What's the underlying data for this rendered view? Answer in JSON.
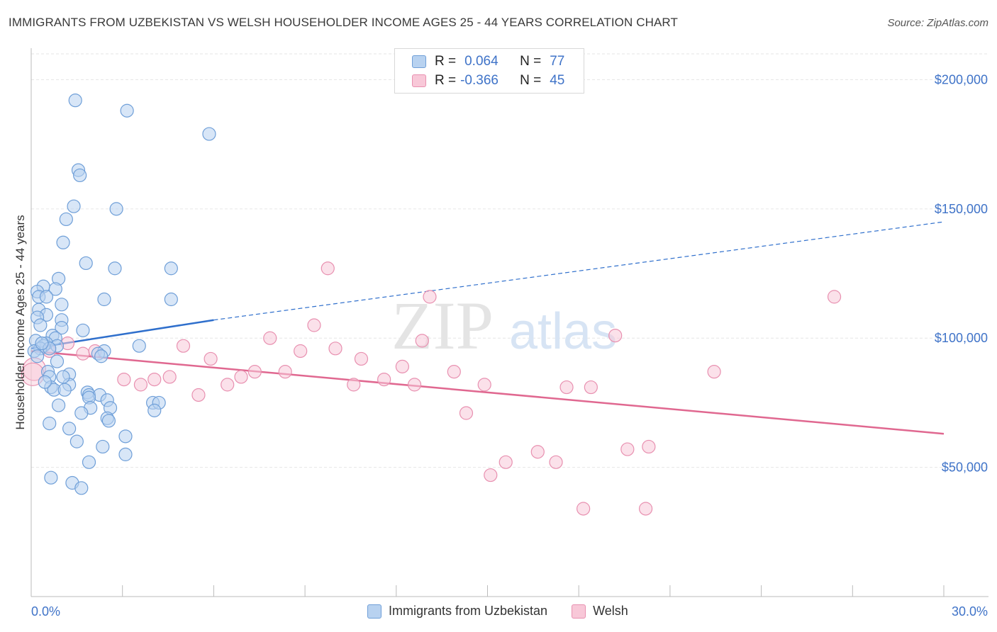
{
  "header": {
    "title": "IMMIGRANTS FROM UZBEKISTAN VS WELSH HOUSEHOLDER INCOME AGES 25 - 44 YEARS CORRELATION CHART",
    "source": "Source: ZipAtlas.com"
  },
  "watermark": {
    "zip": "ZIP",
    "atlas": "atlas"
  },
  "legend": {
    "r_label": "R =",
    "n_label": "N =",
    "uzbekistan": {
      "r": "0.064",
      "n": "77"
    },
    "welsh": {
      "r": "-0.366",
      "n": "45"
    }
  },
  "colors": {
    "uzbekistan_fill": "#b8d2f0",
    "uzbekistan_stroke": "#6f9fd8",
    "uzbekistan_line": "#2f6fcc",
    "welsh_fill": "#f8c8d8",
    "welsh_stroke": "#e890b0",
    "welsh_line": "#e06890"
  },
  "chart_data": {
    "type": "scatter",
    "title": "IMMIGRANTS FROM UZBEKISTAN VS WELSH HOUSEHOLDER INCOME AGES 25 - 44 YEARS CORRELATION CHART",
    "ylabel": "Householder Income Ages 25 - 44 years",
    "xlabel": "",
    "xlim": [
      0,
      30
    ],
    "ylim": [
      0,
      210000
    ],
    "x_tick_labels": [
      "0.0%",
      "30.0%"
    ],
    "y_ticks": [
      50000,
      100000,
      150000,
      200000
    ],
    "y_tick_labels": [
      "$50,000",
      "$100,000",
      "$150,000",
      "$200,000"
    ],
    "grid": true,
    "legend_position": "top-center and bottom",
    "series": [
      {
        "name": "Immigrants from Uzbekistan",
        "r": 0.064,
        "n": 77,
        "trend": {
          "x0": 0,
          "y0": 96000,
          "x1": 6,
          "y1": 107000,
          "dashed_to_x": 30,
          "dashed_to_y": 145000
        },
        "points": [
          [
            1.45,
            192000
          ],
          [
            3.15,
            188000
          ],
          [
            5.85,
            179000
          ],
          [
            1.55,
            165000
          ],
          [
            1.6,
            163000
          ],
          [
            1.4,
            151000
          ],
          [
            2.8,
            150000
          ],
          [
            1.15,
            146000
          ],
          [
            1.05,
            137000
          ],
          [
            1.8,
            129000
          ],
          [
            2.75,
            127000
          ],
          [
            4.6,
            127000
          ],
          [
            0.9,
            123000
          ],
          [
            0.4,
            120000
          ],
          [
            0.8,
            119000
          ],
          [
            0.2,
            118000
          ],
          [
            0.25,
            116000
          ],
          [
            0.5,
            116000
          ],
          [
            2.4,
            115000
          ],
          [
            4.6,
            115000
          ],
          [
            1.0,
            113000
          ],
          [
            0.25,
            111000
          ],
          [
            0.5,
            109000
          ],
          [
            0.2,
            108000
          ],
          [
            1.0,
            107000
          ],
          [
            0.3,
            105000
          ],
          [
            1.0,
            104000
          ],
          [
            1.7,
            103000
          ],
          [
            0.7,
            101000
          ],
          [
            0.8,
            100000
          ],
          [
            0.15,
            99000
          ],
          [
            0.5,
            98000
          ],
          [
            0.4,
            97000
          ],
          [
            0.85,
            97000
          ],
          [
            3.55,
            97000
          ],
          [
            0.3,
            96000
          ],
          [
            0.6,
            96000
          ],
          [
            0.1,
            95000
          ],
          [
            2.4,
            95000
          ],
          [
            2.2,
            94000
          ],
          [
            2.3,
            93000
          ],
          [
            0.2,
            93000
          ],
          [
            0.85,
            91000
          ],
          [
            0.55,
            87000
          ],
          [
            1.25,
            86000
          ],
          [
            0.6,
            85000
          ],
          [
            1.25,
            82000
          ],
          [
            0.65,
            81000
          ],
          [
            0.75,
            80000
          ],
          [
            1.1,
            80000
          ],
          [
            1.85,
            79000
          ],
          [
            1.9,
            78000
          ],
          [
            2.25,
            78000
          ],
          [
            1.9,
            77000
          ],
          [
            2.5,
            76000
          ],
          [
            4.0,
            75000
          ],
          [
            4.2,
            75000
          ],
          [
            0.9,
            74000
          ],
          [
            1.95,
            73000
          ],
          [
            2.6,
            73000
          ],
          [
            4.05,
            72000
          ],
          [
            1.65,
            71000
          ],
          [
            2.5,
            69000
          ],
          [
            2.55,
            68000
          ],
          [
            0.6,
            67000
          ],
          [
            1.25,
            65000
          ],
          [
            3.1,
            62000
          ],
          [
            1.5,
            60000
          ],
          [
            2.35,
            58000
          ],
          [
            3.1,
            55000
          ],
          [
            1.9,
            52000
          ],
          [
            0.65,
            46000
          ],
          [
            1.35,
            44000
          ],
          [
            1.65,
            42000
          ],
          [
            0.35,
            98000
          ],
          [
            0.45,
            83000
          ],
          [
            1.05,
            85000
          ]
        ]
      },
      {
        "name": "Welsh",
        "r": -0.366,
        "n": 45,
        "trend": {
          "x0": 0,
          "y0": 95000,
          "x1": 30,
          "y1": 63000
        },
        "points": [
          [
            0.1,
            88000
          ],
          [
            0.6,
            95000
          ],
          [
            1.2,
            98000
          ],
          [
            1.7,
            94000
          ],
          [
            2.1,
            95000
          ],
          [
            3.05,
            84000
          ],
          [
            3.6,
            82000
          ],
          [
            4.05,
            84000
          ],
          [
            4.55,
            85000
          ],
          [
            5.0,
            97000
          ],
          [
            5.5,
            78000
          ],
          [
            5.9,
            92000
          ],
          [
            6.45,
            82000
          ],
          [
            6.9,
            85000
          ],
          [
            7.35,
            87000
          ],
          [
            7.85,
            100000
          ],
          [
            8.35,
            87000
          ],
          [
            8.85,
            95000
          ],
          [
            9.3,
            105000
          ],
          [
            9.75,
            127000
          ],
          [
            10.0,
            96000
          ],
          [
            10.6,
            82000
          ],
          [
            10.85,
            92000
          ],
          [
            11.6,
            84000
          ],
          [
            12.2,
            89000
          ],
          [
            12.6,
            82000
          ],
          [
            12.85,
            99000
          ],
          [
            13.1,
            116000
          ],
          [
            13.9,
            87000
          ],
          [
            14.3,
            71000
          ],
          [
            14.9,
            82000
          ],
          [
            15.1,
            47000
          ],
          [
            15.6,
            52000
          ],
          [
            16.65,
            56000
          ],
          [
            17.25,
            52000
          ],
          [
            17.6,
            81000
          ],
          [
            18.15,
            34000
          ],
          [
            18.4,
            81000
          ],
          [
            19.2,
            101000
          ],
          [
            19.6,
            57000
          ],
          [
            20.2,
            34000
          ],
          [
            20.3,
            58000
          ],
          [
            22.45,
            87000
          ],
          [
            26.4,
            116000
          ],
          [
            0.05,
            86000
          ]
        ]
      }
    ]
  },
  "bottom_legend": {
    "uzbekistan": "Immigrants from Uzbekistan",
    "welsh": "Welsh"
  }
}
